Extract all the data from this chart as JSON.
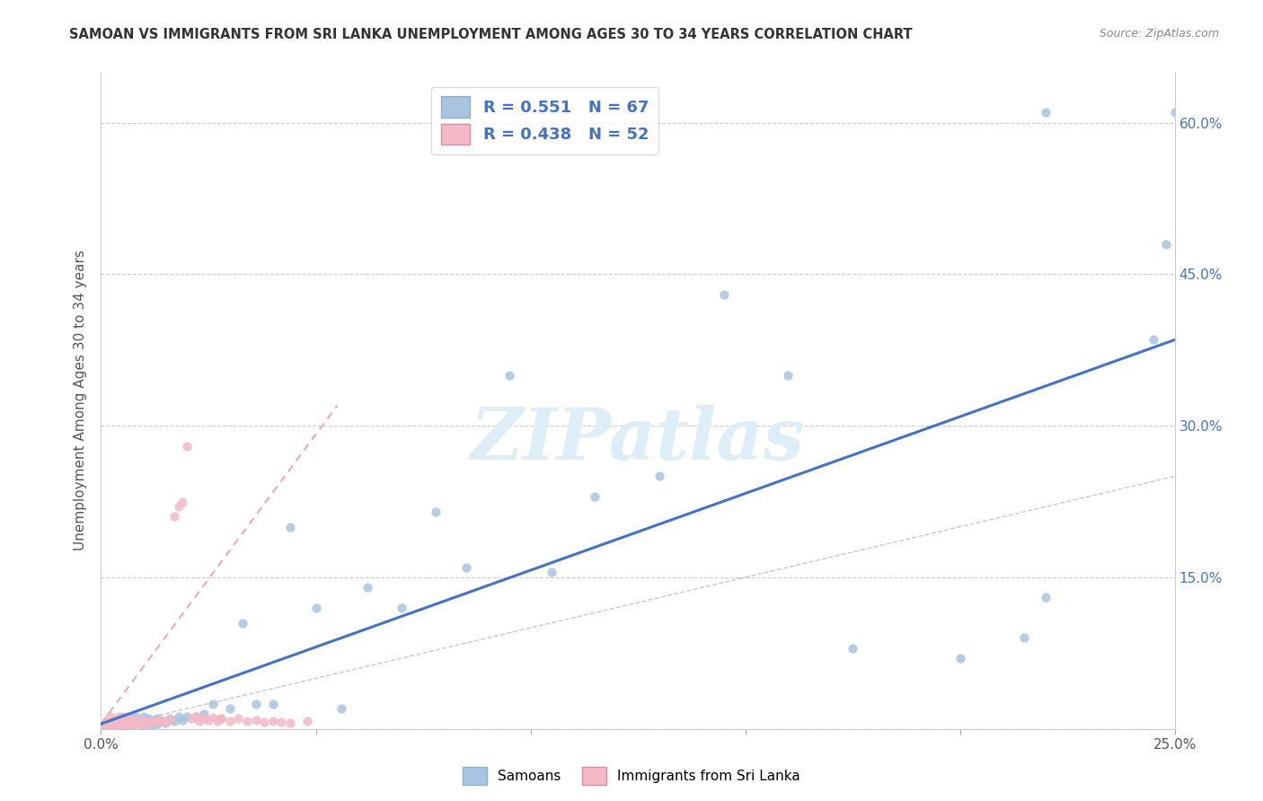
{
  "title": "SAMOAN VS IMMIGRANTS FROM SRI LANKA UNEMPLOYMENT AMONG AGES 30 TO 34 YEARS CORRELATION CHART",
  "source": "Source: ZipAtlas.com",
  "ylabel": "Unemployment Among Ages 30 to 34 years",
  "xlim": [
    0.0,
    0.25
  ],
  "ylim": [
    0.0,
    0.65
  ],
  "x_ticks": [
    0.0,
    0.05,
    0.1,
    0.15,
    0.2,
    0.25
  ],
  "y_ticks": [
    0.0,
    0.15,
    0.3,
    0.45,
    0.6
  ],
  "samoan_R": 0.551,
  "samoan_N": 67,
  "srilanka_R": 0.438,
  "srilanka_N": 52,
  "samoan_color": "#a8c4e0",
  "srilanka_color": "#f4b8c8",
  "samoan_line_color": "#4472c4",
  "srilanka_line_color": "#e8a0b0",
  "watermark_color": "#ddeef8",
  "background_color": "#ffffff",
  "grid_color": "#cccccc",
  "samoan_line_x": [
    0.0,
    0.25
  ],
  "samoan_line_y": [
    0.005,
    0.385
  ],
  "srilanka_line_x": [
    0.0,
    0.055
  ],
  "srilanka_line_y": [
    0.005,
    0.32
  ],
  "diag_line_x": [
    0.0,
    0.25
  ],
  "diag_line_y": [
    0.0,
    0.25
  ],
  "samoan_x": [
    0.001,
    0.002,
    0.002,
    0.003,
    0.003,
    0.004,
    0.004,
    0.004,
    0.005,
    0.005,
    0.005,
    0.006,
    0.006,
    0.006,
    0.007,
    0.007,
    0.007,
    0.008,
    0.008,
    0.008,
    0.009,
    0.009,
    0.01,
    0.01,
    0.01,
    0.011,
    0.011,
    0.012,
    0.012,
    0.013,
    0.013,
    0.014,
    0.015,
    0.016,
    0.017,
    0.018,
    0.019,
    0.02,
    0.022,
    0.024,
    0.026,
    0.028,
    0.03,
    0.033,
    0.036,
    0.04,
    0.044,
    0.05,
    0.056,
    0.062,
    0.07,
    0.078,
    0.085,
    0.095,
    0.105,
    0.115,
    0.13,
    0.145,
    0.16,
    0.175,
    0.2,
    0.215,
    0.22,
    0.22,
    0.245,
    0.248,
    0.25
  ],
  "samoan_y": [
    0.003,
    0.004,
    0.006,
    0.002,
    0.005,
    0.003,
    0.007,
    0.01,
    0.004,
    0.008,
    0.012,
    0.003,
    0.006,
    0.01,
    0.004,
    0.007,
    0.011,
    0.005,
    0.008,
    0.012,
    0.004,
    0.009,
    0.003,
    0.007,
    0.012,
    0.005,
    0.01,
    0.004,
    0.008,
    0.005,
    0.01,
    0.008,
    0.006,
    0.01,
    0.008,
    0.012,
    0.009,
    0.012,
    0.012,
    0.015,
    0.025,
    0.01,
    0.02,
    0.105,
    0.025,
    0.025,
    0.2,
    0.12,
    0.02,
    0.14,
    0.12,
    0.215,
    0.16,
    0.35,
    0.155,
    0.23,
    0.25,
    0.43,
    0.35,
    0.08,
    0.07,
    0.09,
    0.13,
    0.61,
    0.385,
    0.48,
    0.61
  ],
  "srilanka_x": [
    0.001,
    0.001,
    0.002,
    0.002,
    0.002,
    0.003,
    0.003,
    0.003,
    0.004,
    0.004,
    0.004,
    0.005,
    0.005,
    0.005,
    0.006,
    0.006,
    0.006,
    0.007,
    0.007,
    0.008,
    0.008,
    0.009,
    0.009,
    0.01,
    0.01,
    0.011,
    0.012,
    0.013,
    0.014,
    0.015,
    0.016,
    0.017,
    0.018,
    0.019,
    0.02,
    0.021,
    0.022,
    0.023,
    0.024,
    0.025,
    0.026,
    0.027,
    0.028,
    0.03,
    0.032,
    0.034,
    0.036,
    0.038,
    0.04,
    0.042,
    0.044,
    0.048
  ],
  "srilanka_y": [
    0.003,
    0.006,
    0.004,
    0.008,
    0.012,
    0.003,
    0.006,
    0.01,
    0.004,
    0.008,
    0.012,
    0.003,
    0.006,
    0.01,
    0.004,
    0.008,
    0.012,
    0.005,
    0.009,
    0.005,
    0.009,
    0.004,
    0.008,
    0.005,
    0.009,
    0.006,
    0.008,
    0.007,
    0.009,
    0.008,
    0.009,
    0.21,
    0.22,
    0.225,
    0.28,
    0.01,
    0.012,
    0.008,
    0.01,
    0.009,
    0.011,
    0.008,
    0.01,
    0.008,
    0.01,
    0.008,
    0.009,
    0.007,
    0.008,
    0.007,
    0.006,
    0.008
  ]
}
